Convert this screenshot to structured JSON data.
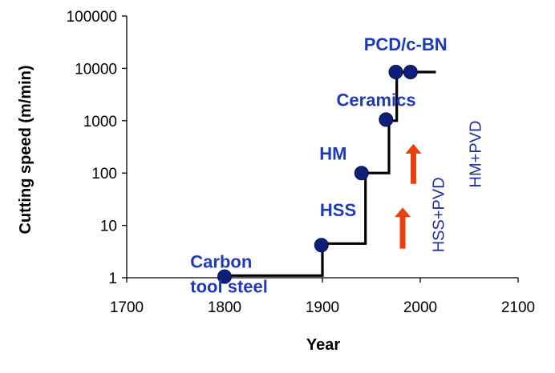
{
  "chart_data": {
    "type": "line",
    "xlabel": "Year",
    "ylabel": "Cutting speed (m/min)",
    "xlim": [
      1700,
      2100
    ],
    "ylim": [
      1,
      100000
    ],
    "y_scale": "log",
    "grid": false,
    "x_ticks": [
      "1700",
      "1800",
      "1900",
      "2000",
      "2100"
    ],
    "y_ticks": [
      "1",
      "10",
      "100",
      "1000",
      "10000",
      "100000"
    ],
    "step_line": {
      "points": [
        {
          "x": 1800,
          "y": 1.1
        },
        {
          "x": 1900,
          "y": 1.1
        },
        {
          "x": 1900,
          "y": 4.5
        },
        {
          "x": 1944,
          "y": 4.5
        },
        {
          "x": 1944,
          "y": 100
        },
        {
          "x": 1968,
          "y": 100
        },
        {
          "x": 1968,
          "y": 1000
        },
        {
          "x": 1976,
          "y": 1000
        },
        {
          "x": 1976,
          "y": 8500
        },
        {
          "x": 2016,
          "y": 8500
        }
      ],
      "color": "#000000"
    },
    "markers": [
      {
        "label": "Carbon tool steel",
        "x": 1800,
        "y": 1.05
      },
      {
        "label": "HSS",
        "x": 1899,
        "y": 4.2
      },
      {
        "label": "HM",
        "x": 1940,
        "y": 100
      },
      {
        "label": "Ceramics",
        "x": 1965,
        "y": 1050
      },
      {
        "label": "PCD/c-BN",
        "x": 1975,
        "y": 8500
      },
      {
        "label": "PCD/c-BN",
        "x": 1990,
        "y": 8500
      }
    ],
    "marker_color": "#0d1f7a",
    "annotations": [
      {
        "lines": [
          "Carbon",
          "tool steel"
        ],
        "x": 1765,
        "y": 1.55,
        "color": "#1f3ab4",
        "bold": true
      },
      {
        "text": "HSS",
        "x": 1916,
        "y": 15,
        "color": "#1f3ab4",
        "bold": true
      },
      {
        "text": "HM",
        "x": 1911,
        "y": 180,
        "color": "#1f3ab4",
        "bold": true
      },
      {
        "text": "Ceramics",
        "x": 1955,
        "y": 1900,
        "color": "#1f3ab4",
        "bold": true
      },
      {
        "text": "PCD/c-BN",
        "x": 1985,
        "y": 22000,
        "color": "#1f3ab4",
        "bold": true
      },
      {
        "text": "HSS+PVD",
        "x": 2024,
        "y": 16,
        "color": "#1f2e9e",
        "bold": false,
        "rotate": -90
      },
      {
        "text": "HM+PVD",
        "x": 2062,
        "y": 230,
        "color": "#1f2e9e",
        "bold": false,
        "rotate": -90
      }
    ],
    "arrows": [
      {
        "x": 1982,
        "y_from": 3.6,
        "y_to": 22,
        "color": "#e8420c"
      },
      {
        "x": 1993,
        "y_from": 62,
        "y_to": 360,
        "color": "#e8420c"
      }
    ]
  }
}
